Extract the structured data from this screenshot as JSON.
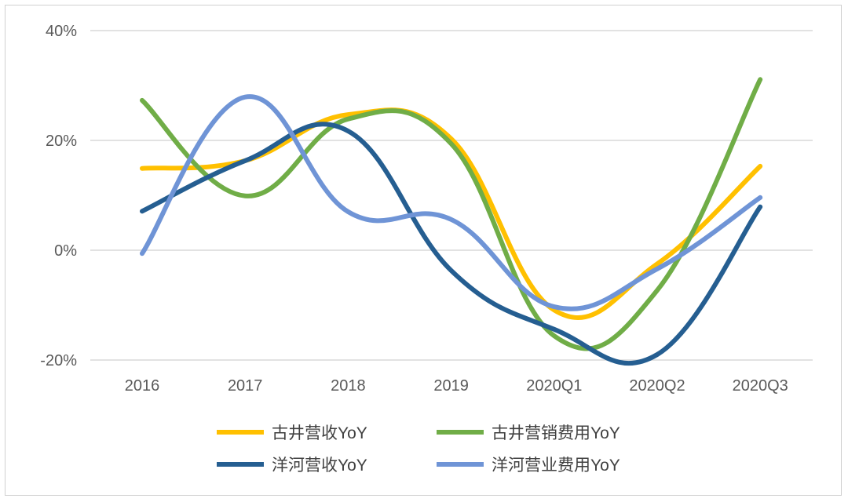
{
  "chart_data": {
    "type": "line",
    "smooth": true,
    "categories": [
      "2016",
      "2017",
      "2018",
      "2019",
      "2020Q1",
      "2020Q2",
      "2020Q3"
    ],
    "ylim": [
      -20,
      40
    ],
    "yticks": [
      -20,
      0,
      20,
      40
    ],
    "ytick_labels": [
      "-20%",
      "0%",
      "20%",
      "40%"
    ],
    "grid": "horizontal",
    "legend": "bottom",
    "series": [
      {
        "name": "古井营收YoY",
        "color": "#FFC000",
        "values": [
          14.9,
          16.3,
          24.7,
          20.3,
          -10.9,
          -2.5,
          15.3
        ]
      },
      {
        "name": "古井营销费用YoY",
        "color": "#70AD47",
        "values": [
          27.3,
          9.9,
          23.9,
          19.4,
          -15.6,
          -7.3,
          31.1
        ]
      },
      {
        "name": "洋河营收YoY",
        "color": "#255E91",
        "values": [
          7.1,
          16.3,
          21.7,
          -3.7,
          -14.4,
          -19.0,
          7.9
        ]
      },
      {
        "name": "洋河营业费用YoY",
        "color": "#6F94D6",
        "values": [
          -0.6,
          27.9,
          7.0,
          5.6,
          -10.3,
          -3.4,
          9.6
        ]
      }
    ]
  }
}
